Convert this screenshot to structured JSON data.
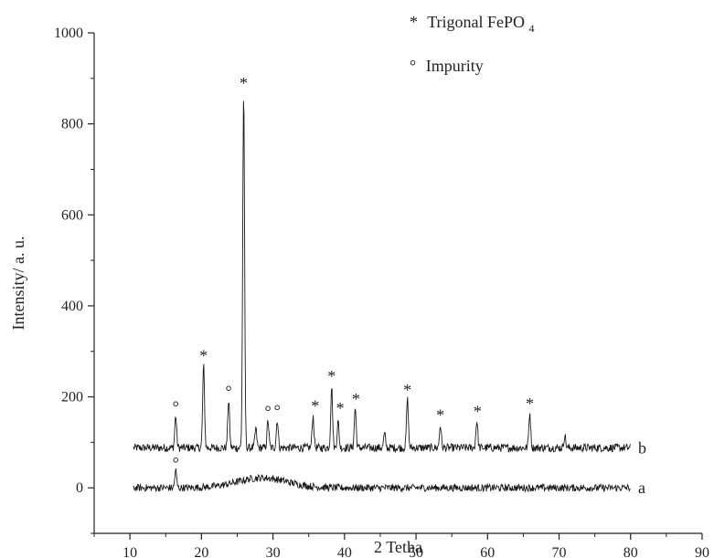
{
  "chart_data": {
    "type": "line",
    "title": "",
    "xlabel": "2 Tetha",
    "ylabel": "Intensity/ a. u.",
    "xlim": [
      5,
      90
    ],
    "ylim": [
      -100,
      1000
    ],
    "x_ticks": [
      10,
      20,
      30,
      40,
      50,
      60,
      70,
      80,
      90
    ],
    "y_ticks": [
      0,
      200,
      400,
      600,
      800,
      1000
    ],
    "grid": false,
    "legend": {
      "placement": "top-right",
      "entries": [
        {
          "symbol": "*",
          "label": "Trigonal FePO",
          "subscript": "4"
        },
        {
          "symbol": "°",
          "label": "Impurity"
        }
      ]
    },
    "x_range": [
      10.5,
      80.0
    ],
    "series": [
      {
        "label": "b",
        "baseline": 88,
        "noise": 9,
        "peaks": [
          {
            "x": 16.4,
            "y": 158
          },
          {
            "x": 20.3,
            "y": 268
          },
          {
            "x": 23.8,
            "y": 192
          },
          {
            "x": 25.9,
            "y": 868
          },
          {
            "x": 27.6,
            "y": 130
          },
          {
            "x": 29.3,
            "y": 148
          },
          {
            "x": 30.6,
            "y": 150
          },
          {
            "x": 35.6,
            "y": 158
          },
          {
            "x": 38.2,
            "y": 222
          },
          {
            "x": 39.1,
            "y": 145
          },
          {
            "x": 41.5,
            "y": 176
          },
          {
            "x": 45.6,
            "y": 118
          },
          {
            "x": 48.8,
            "y": 195
          },
          {
            "x": 53.4,
            "y": 138
          },
          {
            "x": 58.5,
            "y": 148
          },
          {
            "x": 65.9,
            "y": 165
          },
          {
            "x": 70.8,
            "y": 115
          }
        ]
      },
      {
        "label": "a",
        "baseline": 0,
        "noise": 8,
        "peaks": [
          {
            "x": 16.4,
            "y": 38
          }
        ],
        "humps": [
          {
            "x": 28.5,
            "y": 22,
            "width": 3.5
          }
        ]
      }
    ],
    "annotations": [
      {
        "symbol": "°",
        "x": 16.4,
        "y": 178
      },
      {
        "symbol": "*",
        "x": 20.3,
        "y": 290
      },
      {
        "symbol": "°",
        "x": 23.8,
        "y": 212
      },
      {
        "symbol": "*",
        "x": 25.9,
        "y": 890
      },
      {
        "symbol": "°",
        "x": 29.3,
        "y": 168
      },
      {
        "symbol": "°",
        "x": 30.6,
        "y": 170
      },
      {
        "symbol": "*",
        "x": 35.9,
        "y": 180
      },
      {
        "symbol": "*",
        "x": 38.2,
        "y": 245
      },
      {
        "symbol": "*",
        "x": 39.4,
        "y": 175
      },
      {
        "symbol": "*",
        "x": 41.6,
        "y": 195
      },
      {
        "symbol": "*",
        "x": 48.8,
        "y": 215
      },
      {
        "symbol": "*",
        "x": 53.4,
        "y": 160
      },
      {
        "symbol": "*",
        "x": 58.6,
        "y": 168
      },
      {
        "symbol": "*",
        "x": 65.9,
        "y": 185
      },
      {
        "symbol": "°",
        "x": 16.4,
        "y": 55
      }
    ],
    "colors": {
      "line": "#1a1a1a",
      "axis": "#222222"
    }
  }
}
